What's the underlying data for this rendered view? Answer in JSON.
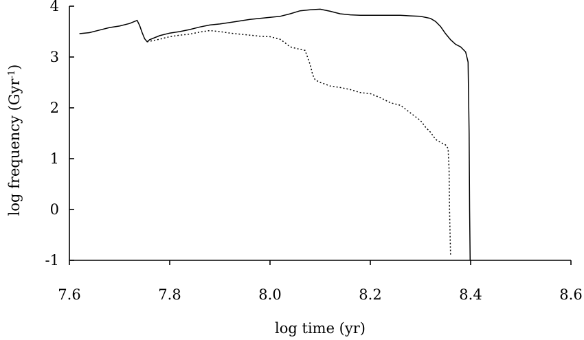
{
  "chart_data": {
    "type": "line",
    "xlabel": "log time (yr)",
    "ylabel": "log frequency (Gyr",
    "ylabel_sup": "-1",
    "ylabel_close": ")",
    "xlim": [
      7.6,
      8.6
    ],
    "ylim": [
      -1,
      4
    ],
    "xticks": [
      7.6,
      7.8,
      8.0,
      8.2,
      8.4,
      8.6
    ],
    "xtick_labels": [
      "7.6",
      "7.8",
      "8.0",
      "8.2",
      "8.4",
      "8.6"
    ],
    "yticks": [
      -1,
      0,
      1,
      2,
      3,
      4
    ],
    "ytick_labels": [
      "-1",
      "0",
      "1",
      "2",
      "3",
      "4"
    ],
    "grid": false,
    "series": [
      {
        "style": "solid",
        "x": [
          7.62,
          7.64,
          7.66,
          7.68,
          7.7,
          7.72,
          7.735,
          7.74,
          7.745,
          7.75,
          7.755,
          7.76,
          7.78,
          7.8,
          7.82,
          7.84,
          7.86,
          7.88,
          7.9,
          7.92,
          7.94,
          7.96,
          7.98,
          8.0,
          8.02,
          8.04,
          8.06,
          8.08,
          8.1,
          8.12,
          8.14,
          8.16,
          8.18,
          8.2,
          8.22,
          8.24,
          8.26,
          8.28,
          8.3,
          8.32,
          8.33,
          8.34,
          8.35,
          8.36,
          8.37,
          8.38,
          8.39,
          8.395,
          8.397,
          8.398,
          8.399
        ],
        "y": [
          3.46,
          3.48,
          3.53,
          3.58,
          3.61,
          3.66,
          3.72,
          3.62,
          3.48,
          3.36,
          3.3,
          3.34,
          3.42,
          3.47,
          3.5,
          3.54,
          3.59,
          3.63,
          3.65,
          3.68,
          3.71,
          3.74,
          3.76,
          3.78,
          3.8,
          3.85,
          3.91,
          3.93,
          3.94,
          3.9,
          3.85,
          3.83,
          3.82,
          3.82,
          3.82,
          3.82,
          3.82,
          3.81,
          3.8,
          3.76,
          3.7,
          3.6,
          3.46,
          3.34,
          3.25,
          3.2,
          3.1,
          2.9,
          1.5,
          0.0,
          -1.0
        ]
      },
      {
        "style": "dotted",
        "x": [
          7.755,
          7.76,
          7.78,
          7.8,
          7.82,
          7.84,
          7.86,
          7.88,
          7.9,
          7.92,
          7.94,
          7.96,
          7.98,
          8.0,
          8.02,
          8.03,
          8.04,
          8.06,
          8.07,
          8.08,
          8.085,
          8.09,
          8.1,
          8.12,
          8.14,
          8.16,
          8.18,
          8.2,
          8.22,
          8.24,
          8.26,
          8.28,
          8.3,
          8.31,
          8.32,
          8.33,
          8.34,
          8.35,
          8.355,
          8.357,
          8.358,
          8.359,
          8.36
        ],
        "y": [
          3.3,
          3.31,
          3.35,
          3.4,
          3.43,
          3.45,
          3.49,
          3.52,
          3.5,
          3.47,
          3.45,
          3.43,
          3.41,
          3.4,
          3.35,
          3.28,
          3.2,
          3.15,
          3.13,
          2.85,
          2.65,
          2.55,
          2.5,
          2.43,
          2.4,
          2.36,
          2.3,
          2.28,
          2.2,
          2.1,
          2.05,
          1.9,
          1.75,
          1.62,
          1.52,
          1.38,
          1.32,
          1.27,
          1.2,
          0.8,
          0.0,
          -0.5,
          -0.9
        ]
      }
    ]
  }
}
